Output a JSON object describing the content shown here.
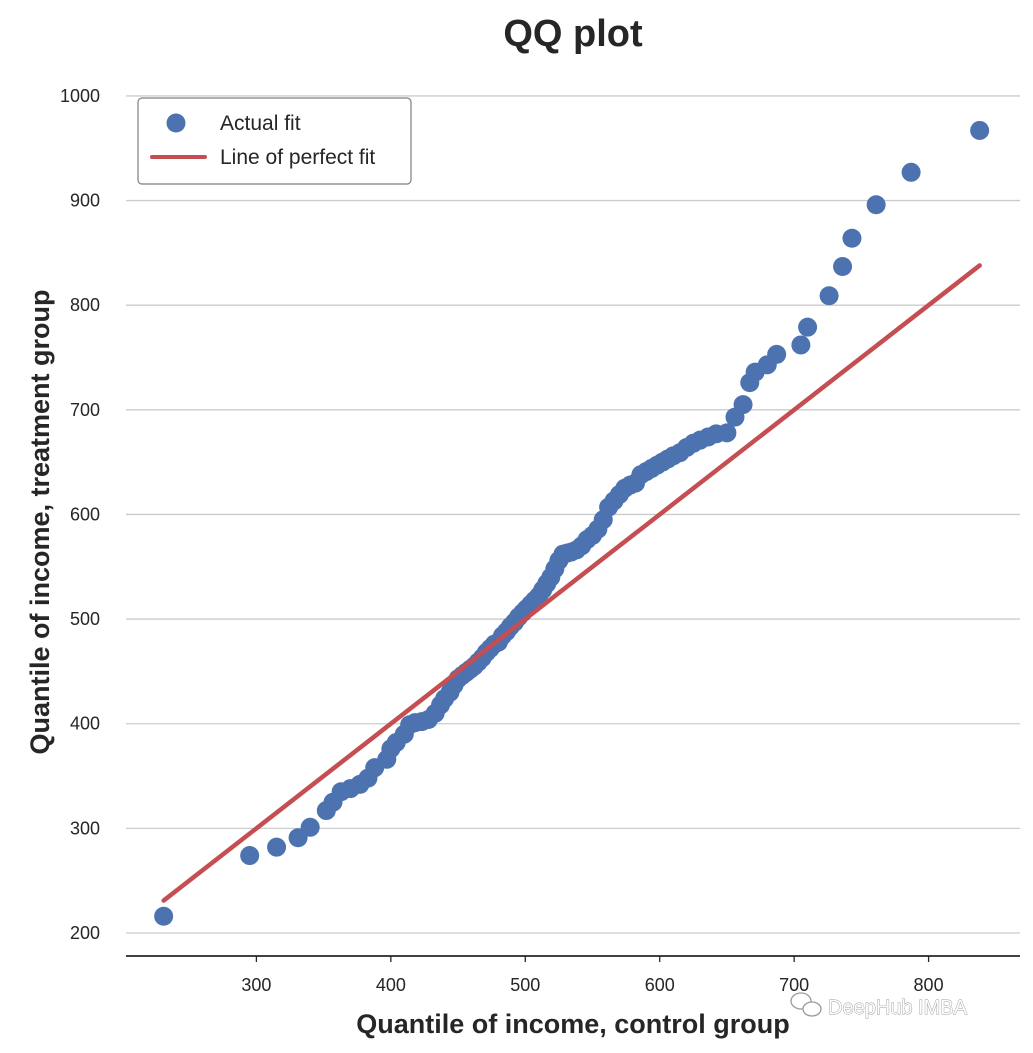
{
  "chart_data": {
    "type": "scatter",
    "title": "QQ plot",
    "xlabel": "Quantile of income, control group",
    "ylabel": "Quantile of income, treatment group",
    "xlim": [
      203,
      868
    ],
    "ylim": [
      178,
      1020
    ],
    "xticks": [
      300,
      400,
      500,
      600,
      700,
      800
    ],
    "yticks": [
      200,
      300,
      400,
      500,
      600,
      700,
      800,
      900,
      1000
    ],
    "grid": "y",
    "legend_position": "top-left",
    "colors": {
      "points": "#4c72b0",
      "line": "#c44e52",
      "grid": "#cccccc",
      "axis": "#262626"
    },
    "series": [
      {
        "name": "Actual fit",
        "kind": "scatter",
        "x": [
          231,
          295,
          315,
          331,
          340,
          352,
          357,
          363,
          370,
          377,
          383,
          388,
          397,
          400,
          404,
          410,
          414,
          418,
          423,
          428,
          433,
          437,
          440,
          444,
          447,
          450,
          453,
          456,
          459,
          462,
          465,
          468,
          471,
          474,
          477,
          480,
          483,
          486,
          489,
          492,
          495,
          498,
          501,
          504,
          507,
          510,
          513,
          516,
          519,
          522,
          525,
          528,
          531,
          534,
          538,
          542,
          546,
          550,
          554,
          558,
          562,
          566,
          570,
          574,
          578,
          582,
          586,
          590,
          594,
          598,
          602,
          606,
          610,
          615,
          620,
          625,
          630,
          636,
          642,
          650,
          656,
          662,
          667,
          671,
          680,
          687,
          705,
          710,
          726,
          736,
          743,
          761,
          787,
          838
        ],
        "y": [
          216,
          274,
          282,
          291,
          301,
          317,
          325,
          335,
          338,
          342,
          348,
          358,
          366,
          376,
          382,
          390,
          399,
          401,
          402,
          404,
          410,
          418,
          424,
          430,
          437,
          443,
          446,
          449,
          452,
          455,
          459,
          463,
          468,
          472,
          476,
          478,
          484,
          488,
          493,
          497,
          502,
          506,
          510,
          514,
          518,
          522,
          528,
          534,
          540,
          548,
          556,
          562,
          563,
          564,
          566,
          570,
          576,
          580,
          586,
          595,
          607,
          613,
          619,
          625,
          628,
          630,
          638,
          641,
          644,
          647,
          650,
          653,
          656,
          659,
          664,
          668,
          671,
          674,
          677,
          678,
          693,
          705,
          726,
          736,
          743,
          753,
          762,
          779,
          809,
          837,
          864,
          896,
          927,
          967
        ]
      },
      {
        "name": "Line of perfect fit",
        "kind": "line",
        "x": [
          231,
          838
        ],
        "y": [
          231,
          838
        ]
      }
    ],
    "watermark": "DeepHub IMBA"
  }
}
